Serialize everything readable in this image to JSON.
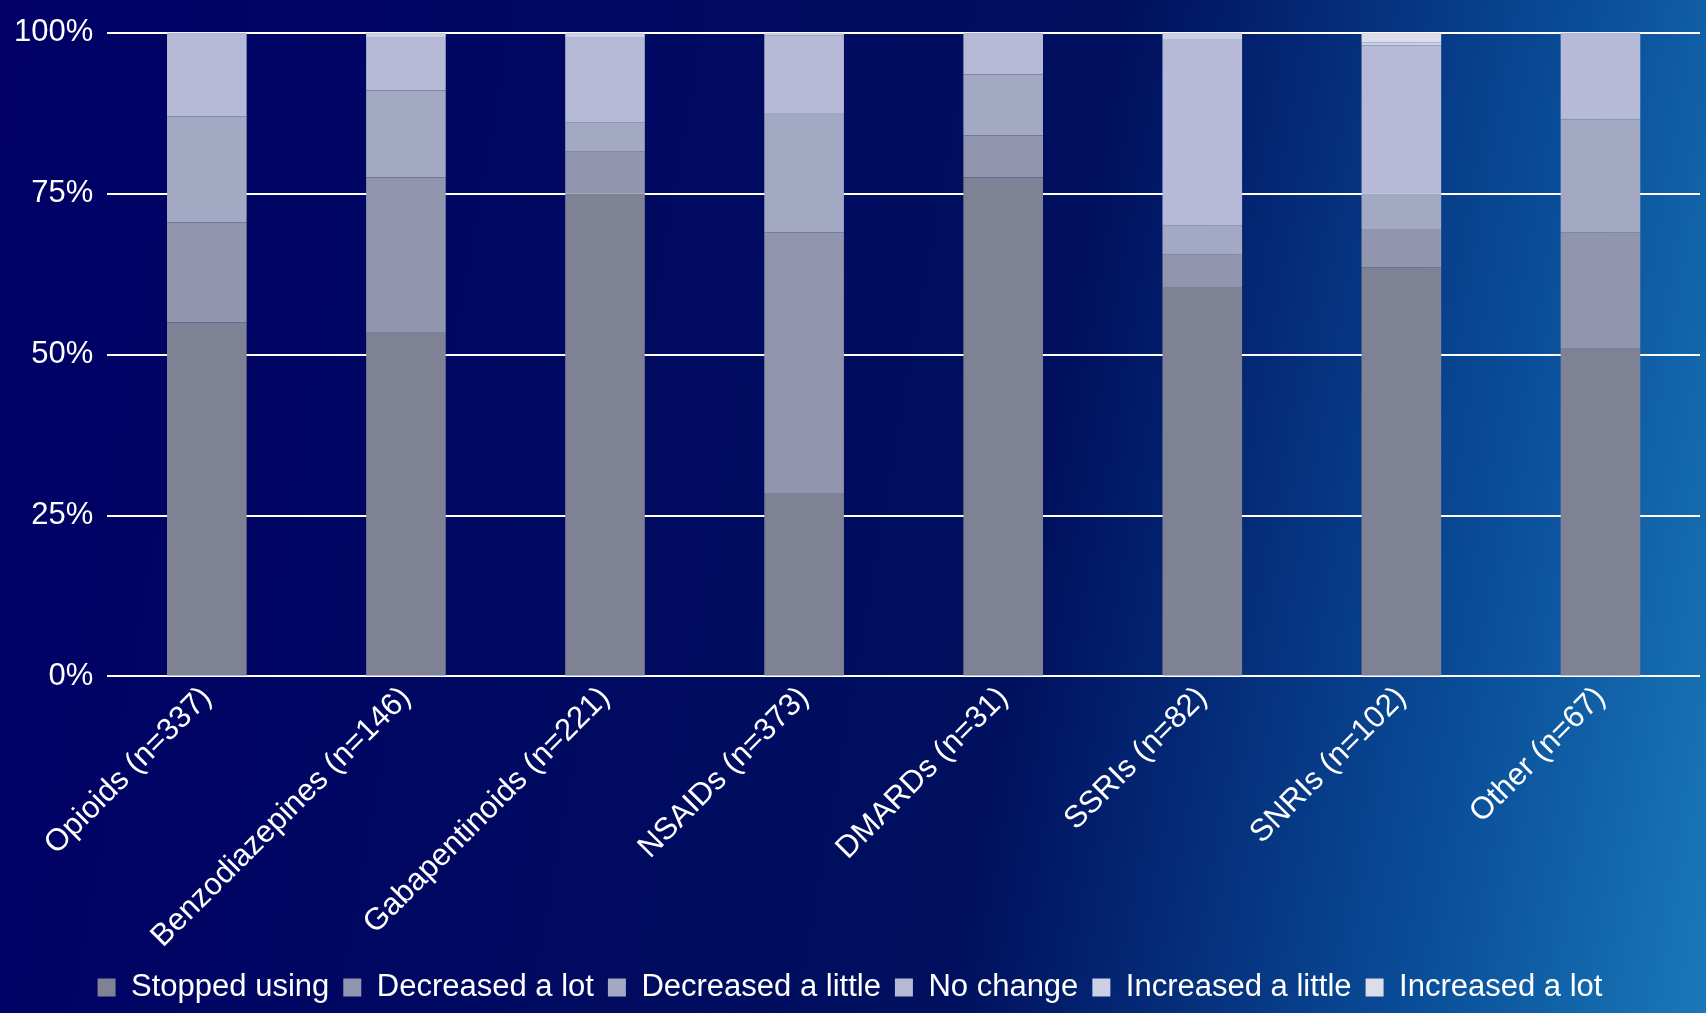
{
  "chart_data": {
    "type": "bar",
    "stacked": true,
    "categories": [
      "Opioids (n=337)",
      "Benzodiazepines (n=146)",
      "Gabapentinoids (n=221)",
      "NSAIDs (n=373)",
      "DMARDs (n=31)",
      "SSRIs (n=82)",
      "SNRIs (n=102)",
      "Other (n=67)"
    ],
    "series": [
      {
        "name": "Stopped using",
        "color": "#7f8294",
        "values": [
          55,
          53.5,
          75,
          28.5,
          77.5,
          60.5,
          63.5,
          51
        ]
      },
      {
        "name": "Decreased a lot",
        "color": "#9196ae",
        "values": [
          15.5,
          24,
          6.5,
          40.5,
          6.5,
          5,
          6,
          18
        ]
      },
      {
        "name": "Decreased a little",
        "color": "#a4a9c3",
        "values": [
          16.5,
          13.5,
          4.5,
          18.5,
          9.5,
          4.5,
          5.5,
          17.5
        ]
      },
      {
        "name": "No change",
        "color": "#b6bad6",
        "values": [
          13,
          8.3,
          13.3,
          12,
          6.5,
          29,
          23,
          13.5
        ]
      },
      {
        "name": "Increased a little",
        "color": "#cdd0e4",
        "values": [
          0,
          0.7,
          0.7,
          0.5,
          0,
          1,
          0.5,
          0
        ]
      },
      {
        "name": "Increased a lot",
        "color": "#dcdde8",
        "values": [
          0,
          0,
          0,
          0,
          0,
          0,
          1.5,
          0
        ]
      }
    ],
    "ylim": [
      0,
      100
    ],
    "yticks": [
      {
        "value": 0,
        "label": "0%"
      },
      {
        "value": 25,
        "label": "25%"
      },
      {
        "value": 50,
        "label": "50%"
      },
      {
        "value": 75,
        "label": "75%"
      },
      {
        "value": 100,
        "label": "100%"
      }
    ],
    "grid": "y",
    "legend": "bottom"
  }
}
